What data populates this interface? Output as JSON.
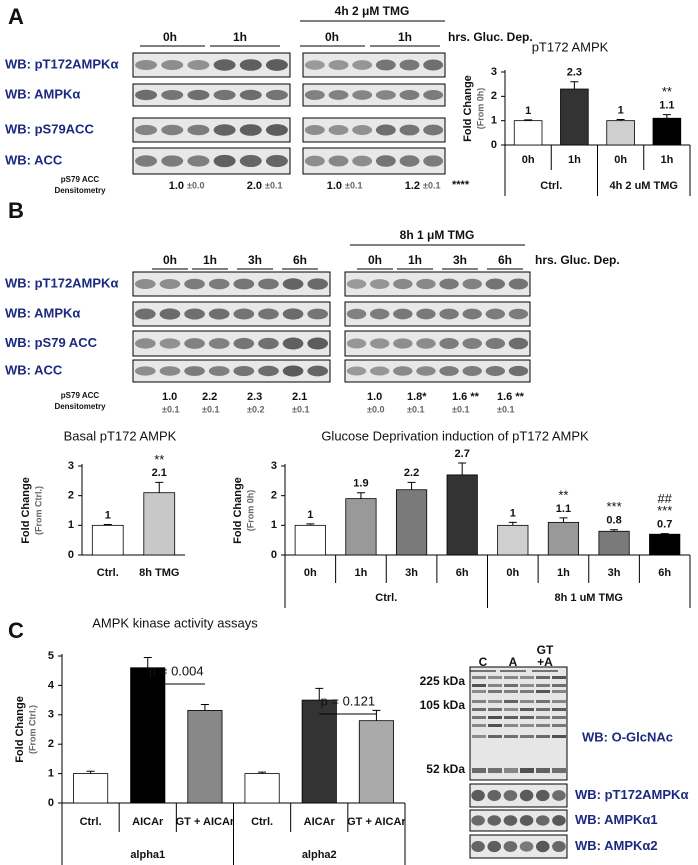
{
  "panel_labels": [
    "A",
    "B",
    "C"
  ],
  "panel_a": {
    "treatment_header": "4h 2 μM TMG",
    "timepoints": [
      "0h",
      "1h",
      "0h",
      "1h"
    ],
    "timepoint_caption": "hrs. Gluc. Dep.",
    "blot_labels": [
      "WB: pT172AMPKα",
      "WB: AMPKα",
      "WB: pS79ACC",
      "WB: ACC"
    ],
    "densitometry_label": [
      "pS79 ACC",
      "Densitometry"
    ],
    "densitometry_means": [
      "1.0",
      "2.0",
      "1.0",
      "1.2"
    ],
    "densitometry_sd": [
      "±0.0",
      "±0.1",
      "±0.1",
      "±0.1"
    ],
    "densitometry_significance": "****"
  },
  "panel_b": {
    "treatment_header": "8h 1 μM TMG",
    "timepoints": [
      "0h",
      "1h",
      "3h",
      "6h",
      "0h",
      "1h",
      "3h",
      "6h"
    ],
    "timepoint_caption": "hrs. Gluc. Dep.",
    "blot_labels": [
      "WB: pT172AMPKα",
      "WB: AMPKα",
      "WB: pS79 ACC",
      "WB: ACC"
    ],
    "densitometry_label": [
      "pS79 ACC",
      "Densitometry"
    ],
    "densitometry_means": [
      "1.0",
      "2.2",
      "2.3",
      "2.1",
      "1.0",
      "1.8*",
      "1.6 **",
      "1.6 **"
    ],
    "densitometry_sd": [
      "±0.1",
      "±0.1",
      "±0.2",
      "±0.1",
      "±0.0",
      "±0.1",
      "±0.1",
      "±0.1"
    ]
  },
  "panel_c": {
    "size_markers": [
      "225 kDa",
      "105 kDa",
      "52 kDa"
    ],
    "lane_labels": [
      "C",
      "A",
      [
        "GT",
        "+A"
      ]
    ],
    "blot_labels": [
      "WB: O-GlcNAc",
      "WB: pT172AMPKα",
      "WB: AMPKα1",
      "WB: AMPKα2"
    ]
  },
  "chart_data": [
    {
      "type": "bar",
      "title": "pT172 AMPK",
      "y_label": [
        "Fold Change",
        "(From 0h)"
      ],
      "categories": [
        "0h",
        "1h",
        "0h",
        "1h"
      ],
      "group_labels": [
        "Ctrl.",
        "4h 2 uM TMG"
      ],
      "values": [
        1,
        2.3,
        1,
        1.1
      ],
      "errors": [
        0.03,
        0.3,
        0.05,
        0.15
      ],
      "colors": [
        "#ffffff",
        "#333333",
        "#cfcfcf",
        "#000000"
      ],
      "annotations": [
        null,
        null,
        null,
        "**"
      ],
      "show_values": true,
      "ylim": [
        0,
        3
      ],
      "yticks": [
        0,
        1,
        2,
        3
      ]
    },
    {
      "type": "bar",
      "title": "Basal pT172 AMPK",
      "y_label": [
        "Fold Change",
        "(From Ctrl.)"
      ],
      "categories": [
        "Ctrl.",
        "8h TMG"
      ],
      "values": [
        1,
        2.1
      ],
      "errors": [
        0.03,
        0.35
      ],
      "colors": [
        "#ffffff",
        "#c8c8c8"
      ],
      "annotations": [
        null,
        "**"
      ],
      "show_values": true,
      "ylim": [
        0,
        3
      ],
      "yticks": [
        0,
        1,
        2,
        3
      ]
    },
    {
      "type": "bar",
      "title": "Glucose Deprivation induction of pT172 AMPK",
      "y_label": [
        "Fold Change",
        "(From 0h)"
      ],
      "categories": [
        "0h",
        "1h",
        "3h",
        "6h",
        "0h",
        "1h",
        "3h",
        "6h"
      ],
      "group_labels": [
        "Ctrl.",
        "8h 1 uM TMG"
      ],
      "values": [
        1,
        1.9,
        2.2,
        2.7,
        1,
        1.1,
        0.8,
        0.7
      ],
      "errors": [
        0.05,
        0.2,
        0.25,
        0.4,
        0.1,
        0.15,
        0.05,
        0.02
      ],
      "colors": [
        "#ffffff",
        "#999999",
        "#7a7a7a",
        "#333333",
        "#cfcfcf",
        "#999999",
        "#7a7a7a",
        "#000000"
      ],
      "annotations": [
        null,
        null,
        null,
        null,
        null,
        "**",
        "***",
        [
          "##",
          "***"
        ]
      ],
      "show_values": true,
      "ylim": [
        0,
        3
      ],
      "yticks": [
        0,
        1,
        2,
        3
      ]
    },
    {
      "type": "bar",
      "title": "AMPK kinase activity assays",
      "y_label": [
        "Fold Change",
        "(From Ctrl.)"
      ],
      "categories": [
        "Ctrl.",
        "AICAr",
        "GT + AICAr",
        "Ctrl.",
        "AICAr",
        "GT + AICAr"
      ],
      "group_labels": [
        "alpha1",
        "alpha2"
      ],
      "values": [
        1,
        4.6,
        3.15,
        1,
        3.5,
        2.8
      ],
      "errors": [
        0.08,
        0.35,
        0.2,
        0.05,
        0.4,
        0.35
      ],
      "colors": [
        "#ffffff",
        "#000000",
        "#888888",
        "#ffffff",
        "#333333",
        "#aaaaaa"
      ],
      "brackets": [
        "p = 0.004",
        "p = 0.121"
      ],
      "show_values": false,
      "ylim": [
        0,
        5
      ],
      "yticks": [
        0,
        1,
        2,
        3,
        4,
        5
      ]
    }
  ]
}
